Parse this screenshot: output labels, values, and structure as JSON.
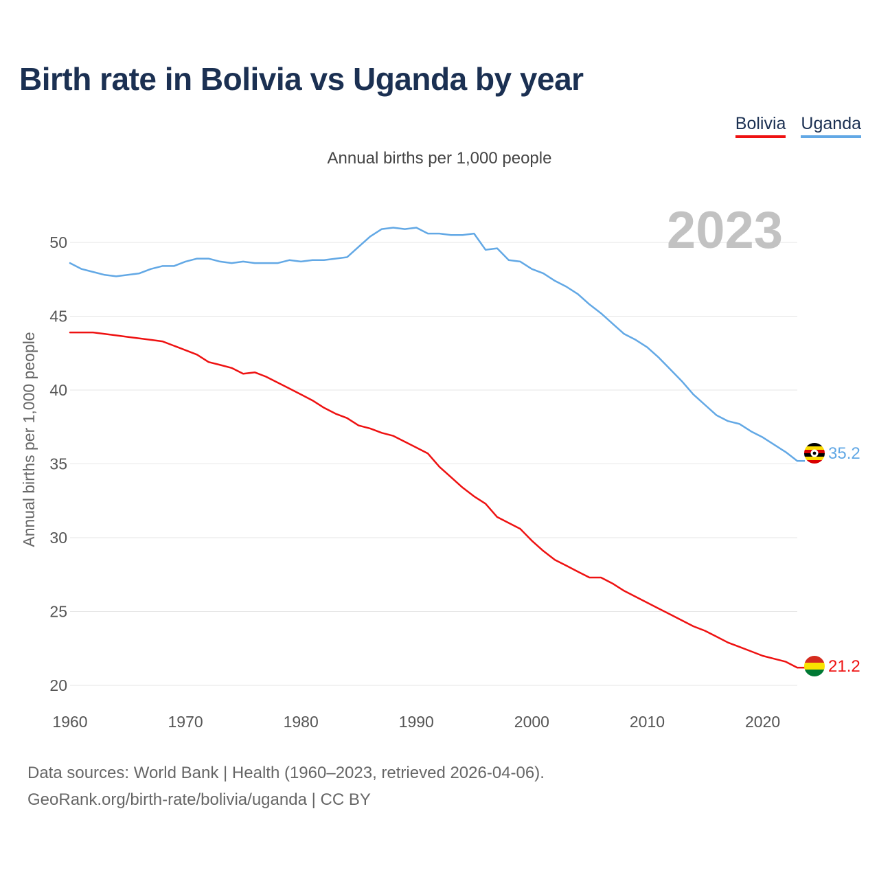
{
  "title": "Birth rate in Bolivia vs Uganda by year",
  "subtitle": "Annual births per 1,000 people",
  "legend": [
    {
      "label": "Bolivia",
      "color": "#ee1111"
    },
    {
      "label": "Uganda",
      "color": "#62a8e5"
    }
  ],
  "source_line1": "Data sources: World Bank | Health (1960–2023, retrieved 2026-04-06).",
  "source_line2": "GeoRank.org/birth-rate/bolivia/uganda | CC BY",
  "chart_data": {
    "type": "line",
    "title": "Birth rate in Bolivia vs Uganda by year",
    "xlabel": "",
    "ylabel": "Annual births per 1,000 people",
    "xlim": [
      1960,
      2023
    ],
    "ylim": [
      20,
      52
    ],
    "xticks": [
      1960,
      1970,
      1980,
      1990,
      2000,
      2010,
      2020
    ],
    "yticks": [
      20,
      25,
      30,
      35,
      40,
      45,
      50
    ],
    "grid": true,
    "year_label": "2023",
    "x": [
      1960,
      1961,
      1962,
      1963,
      1964,
      1965,
      1966,
      1967,
      1968,
      1969,
      1970,
      1971,
      1972,
      1973,
      1974,
      1975,
      1976,
      1977,
      1978,
      1979,
      1980,
      1981,
      1982,
      1983,
      1984,
      1985,
      1986,
      1987,
      1988,
      1989,
      1990,
      1991,
      1992,
      1993,
      1994,
      1995,
      1996,
      1997,
      1998,
      1999,
      2000,
      2001,
      2002,
      2003,
      2004,
      2005,
      2006,
      2007,
      2008,
      2009,
      2010,
      2011,
      2012,
      2013,
      2014,
      2015,
      2016,
      2017,
      2018,
      2019,
      2020,
      2021,
      2022,
      2023
    ],
    "series": [
      {
        "name": "Bolivia",
        "color": "#ee1111",
        "end_label": "21.2",
        "values": [
          43.9,
          43.9,
          43.9,
          43.8,
          43.7,
          43.6,
          43.5,
          43.4,
          43.3,
          43.0,
          42.7,
          42.4,
          41.9,
          41.7,
          41.5,
          41.1,
          41.2,
          40.9,
          40.5,
          40.1,
          39.7,
          39.3,
          38.8,
          38.4,
          38.1,
          37.6,
          37.4,
          37.1,
          36.9,
          36.5,
          36.1,
          35.7,
          34.8,
          34.1,
          33.4,
          32.8,
          32.3,
          31.4,
          31.0,
          30.6,
          29.8,
          29.1,
          28.5,
          28.1,
          27.7,
          27.3,
          27.3,
          26.9,
          26.4,
          26.0,
          25.6,
          25.2,
          24.8,
          24.4,
          24.0,
          23.7,
          23.3,
          22.9,
          22.6,
          22.3,
          22.0,
          21.8,
          21.6,
          21.2
        ]
      },
      {
        "name": "Uganda",
        "color": "#62a8e5",
        "end_label": "35.2",
        "values": [
          48.6,
          48.2,
          48.0,
          47.8,
          47.7,
          47.8,
          47.9,
          48.2,
          48.4,
          48.4,
          48.7,
          48.9,
          48.9,
          48.7,
          48.6,
          48.7,
          48.6,
          48.6,
          48.6,
          48.8,
          48.7,
          48.8,
          48.8,
          48.9,
          49.0,
          49.7,
          50.4,
          50.9,
          51.0,
          50.9,
          51.0,
          50.6,
          50.6,
          50.5,
          50.5,
          50.6,
          49.5,
          49.6,
          48.8,
          48.7,
          48.2,
          47.9,
          47.4,
          47.0,
          46.5,
          45.8,
          45.2,
          44.5,
          43.8,
          43.4,
          42.9,
          42.2,
          41.4,
          40.6,
          39.7,
          39.0,
          38.3,
          37.9,
          37.7,
          37.2,
          36.8,
          36.3,
          35.8,
          35.2
        ]
      }
    ]
  }
}
